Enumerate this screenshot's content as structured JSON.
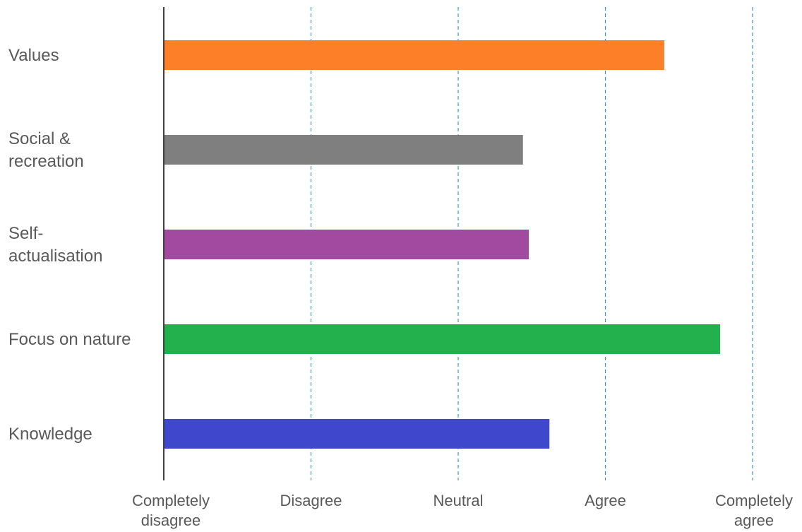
{
  "chart_data": {
    "type": "bar",
    "orientation": "horizontal",
    "categories": [
      [
        "Values"
      ],
      [
        "Social &",
        "recreation"
      ],
      [
        "Self-",
        "actualisation"
      ],
      [
        "Focus on nature"
      ],
      [
        "Knowledge"
      ]
    ],
    "values": [
      4.4,
      3.44,
      3.48,
      4.78,
      3.62
    ],
    "colors": [
      "#FD7F28",
      "#7F7F7F",
      "#A24AA0",
      "#22B14C",
      "#3F48CC"
    ],
    "xlim": [
      1,
      5
    ],
    "x_ticks": [
      {
        "value": 1,
        "label": [
          "Completely",
          "disagree"
        ]
      },
      {
        "value": 2,
        "label": [
          "Disagree"
        ]
      },
      {
        "value": 3,
        "label": [
          "Neutral"
        ]
      },
      {
        "value": 4,
        "label": [
          "Agree"
        ]
      },
      {
        "value": 5,
        "label": [
          "Completely",
          "agree"
        ]
      }
    ],
    "grid": "vertical dashed",
    "grid_color": "#4A90C8",
    "axis_color": "#404040",
    "title": "",
    "xlabel": "",
    "ylabel": ""
  }
}
